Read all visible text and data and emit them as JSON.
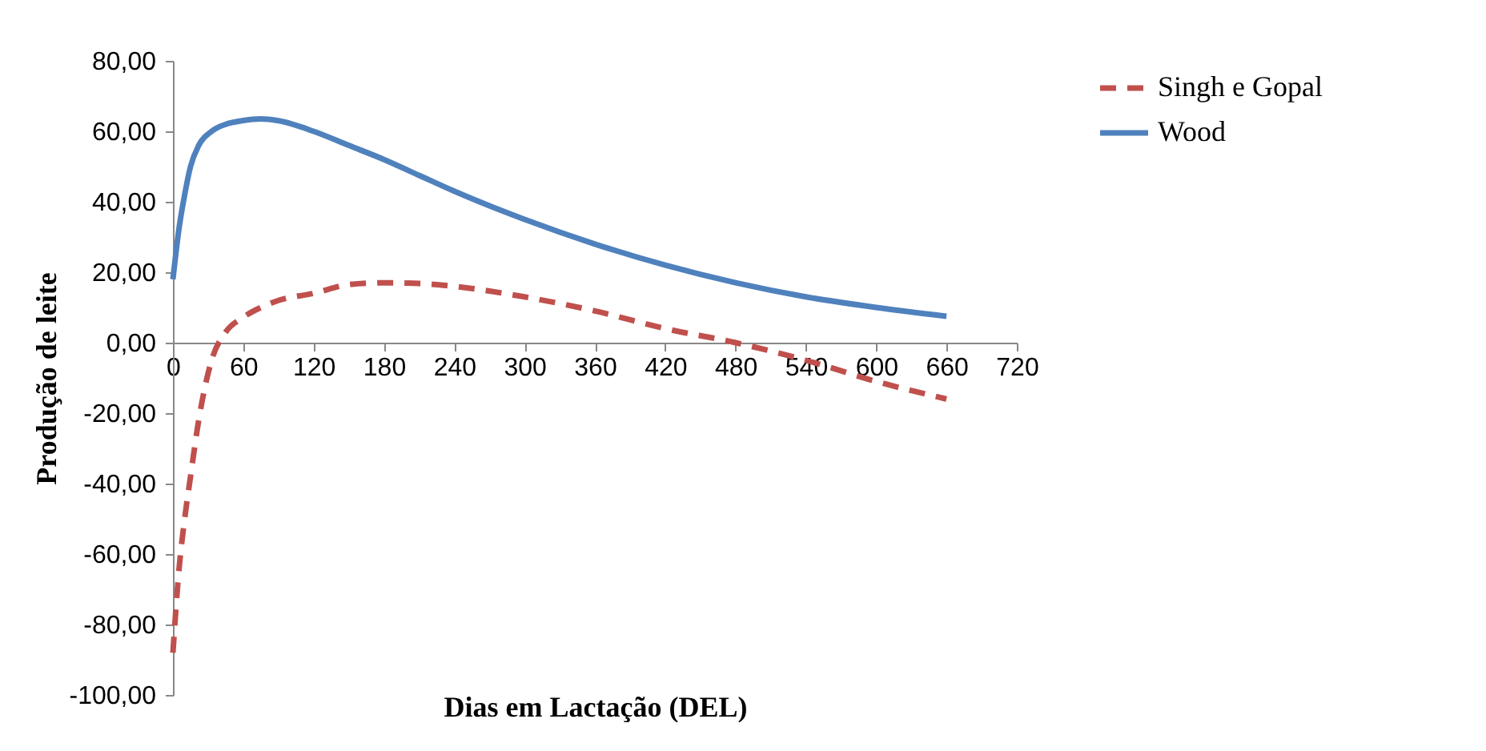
{
  "chart_data": {
    "type": "line",
    "xlabel": "Dias em Lactação (DEL)",
    "ylabel": "Produção de leite",
    "x": [
      0,
      5,
      10,
      15,
      22,
      33,
      45,
      59,
      75,
      90,
      120,
      150,
      180,
      210,
      240,
      300,
      360,
      420,
      480,
      540,
      600,
      660
    ],
    "series": [
      {
        "name": "Singh e Gopal",
        "color": "#c0504d",
        "line_style": "dashed",
        "values": [
          -88,
          -65,
          -50,
          -38,
          -22,
          -5,
          3,
          7,
          10,
          12,
          14,
          16.5,
          17,
          16.8,
          16,
          13,
          9,
          4,
          0,
          -5,
          -11,
          -16
        ]
      },
      {
        "name": "Wood",
        "color": "#4f81bd",
        "line_style": "solid",
        "values": [
          18,
          32,
          42,
          50,
          56,
          60,
          62,
          63,
          63.5,
          63,
          60,
          56,
          52,
          47.5,
          43,
          35,
          28,
          22,
          17,
          13,
          10,
          7.5
        ]
      }
    ],
    "xlim": [
      0,
      720
    ],
    "xticks": [
      0,
      60,
      120,
      180,
      240,
      300,
      360,
      420,
      480,
      540,
      600,
      660,
      720
    ],
    "ylim": [
      -100,
      80
    ],
    "yticks": [
      {
        "value": -100,
        "label": "-100,00"
      },
      {
        "value": -80,
        "label": "-80,00"
      },
      {
        "value": -60,
        "label": "-60,00"
      },
      {
        "value": -40,
        "label": "-40,00"
      },
      {
        "value": -20,
        "label": "-20,00"
      },
      {
        "value": 0,
        "label": "0,00"
      },
      {
        "value": 20,
        "label": "20,00"
      },
      {
        "value": 40,
        "label": "40,00"
      },
      {
        "value": 60,
        "label": "60,00"
      },
      {
        "value": 80,
        "label": "80,00"
      }
    ],
    "grid": false,
    "legend": "right"
  }
}
